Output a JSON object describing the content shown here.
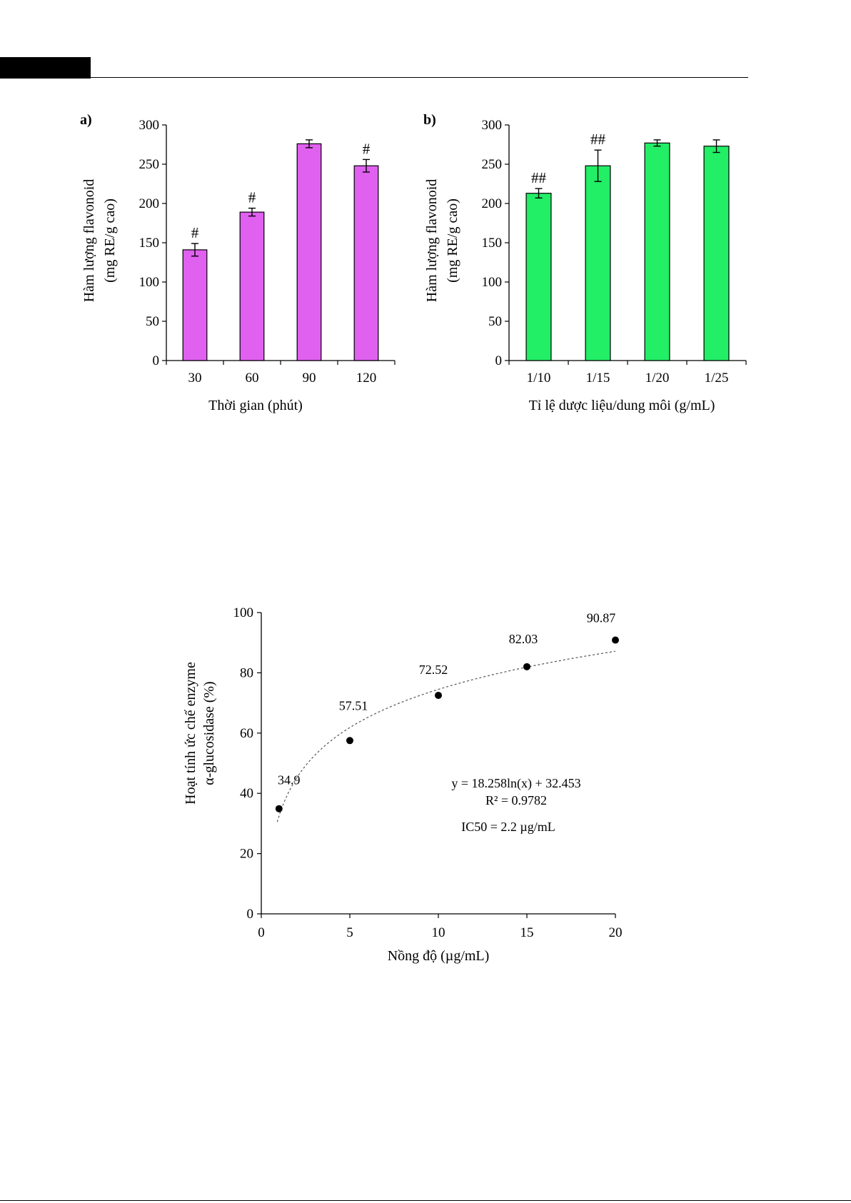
{
  "colors": {
    "panel_a_bar": "#E060F0",
    "panel_b_bar": "#22EE66",
    "axis": "#000000",
    "trendline": "#555555"
  },
  "chart_data": [
    {
      "type": "bar",
      "panel_label": "a)",
      "categories": [
        "30",
        "60",
        "90",
        "120"
      ],
      "values": [
        141,
        189,
        276,
        248
      ],
      "errors": [
        8,
        5,
        5,
        8
      ],
      "significance": [
        "#",
        "#",
        "",
        "#"
      ],
      "xlabel": "Thời gian (phút)",
      "ylabel_line1": "Hàm lượng flavonoid",
      "ylabel_line2": "(mg RE/g cao)",
      "ylim": [
        0,
        300
      ],
      "yticks": [
        0,
        50,
        100,
        150,
        200,
        250,
        300
      ]
    },
    {
      "type": "bar",
      "panel_label": "b)",
      "categories": [
        "1/10",
        "1/15",
        "1/20",
        "1/25"
      ],
      "values": [
        213,
        248,
        277,
        273
      ],
      "errors": [
        6,
        20,
        4,
        8
      ],
      "significance": [
        "##",
        "##",
        "",
        ""
      ],
      "xlabel": "Tỉ lệ dược liệu/dung môi (g/mL)",
      "ylabel_line1": "Hàm lượng flavonoid",
      "ylabel_line2": "(mg RE/g cao)",
      "ylim": [
        0,
        300
      ],
      "yticks": [
        0,
        50,
        100,
        150,
        200,
        250,
        300
      ]
    },
    {
      "type": "scatter",
      "x": [
        1,
        5,
        10,
        15,
        20
      ],
      "y": [
        34.9,
        57.51,
        72.52,
        82.03,
        90.87
      ],
      "point_labels": [
        "34.9",
        "57.51",
        "72.52",
        "82.03",
        "90.87"
      ],
      "trendline": {
        "type": "logarithmic",
        "a": 18.258,
        "b": 32.453
      },
      "equation": "y = 18.258ln(x) + 32.453",
      "r_squared": "R² = 0.9782",
      "ic50": "IC50 = 2.2 µg/mL",
      "xlabel": "Nồng độ (µg/mL)",
      "ylabel_line1": "Hoạt tính ức chế enzyme",
      "ylabel_line2": "α-glucosidase (%)",
      "xlim": [
        0,
        20
      ],
      "ylim": [
        0,
        100
      ],
      "xticks": [
        0,
        5,
        10,
        15,
        20
      ],
      "yticks": [
        0,
        20,
        40,
        60,
        80,
        100
      ]
    }
  ]
}
